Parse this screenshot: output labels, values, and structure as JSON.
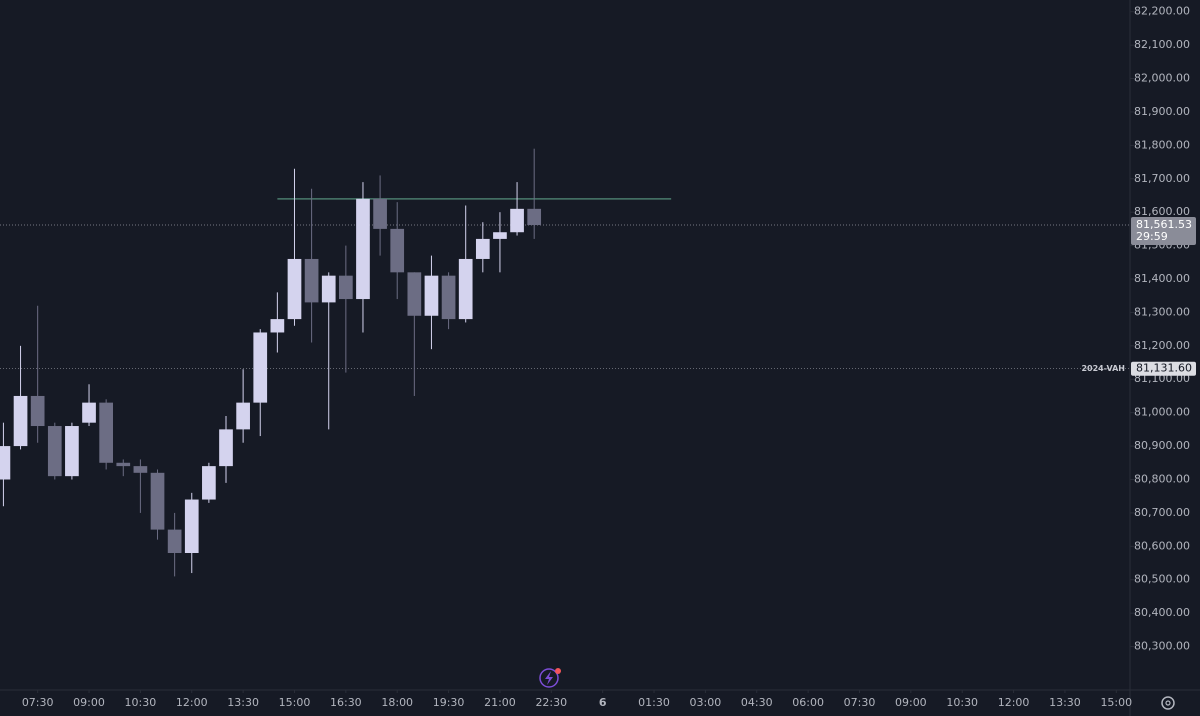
{
  "chart_data": {
    "type": "candlestick",
    "x": [
      6.5,
      7,
      7.5,
      8,
      8.5,
      9,
      9.5,
      10,
      10.5,
      11,
      11.5,
      12,
      12.5,
      13,
      13.5,
      14,
      14.5,
      15,
      15.5,
      16,
      16.5,
      17,
      17.5,
      18,
      18.5,
      19,
      19.5,
      20,
      20.5,
      21,
      21.5,
      22
    ],
    "open": [
      80800,
      80900,
      81050,
      80960,
      80810,
      80970,
      81030,
      80850,
      80840,
      80820,
      80650,
      80580,
      80740,
      80840,
      80950,
      81030,
      81240,
      81280,
      81460,
      81330,
      81410,
      81340,
      81640,
      81550,
      81420,
      81290,
      81410,
      81280,
      81460,
      81520,
      81540,
      81610
    ],
    "high": [
      80970,
      81200,
      81320,
      80970,
      80970,
      81085,
      81040,
      80860,
      80860,
      80830,
      80700,
      80760,
      80850,
      80990,
      81130,
      81250,
      81360,
      81730,
      81670,
      81420,
      81500,
      81690,
      81710,
      81630,
      81420,
      81470,
      81420,
      81620,
      81570,
      81600,
      81690,
      81790
    ],
    "low": [
      80720,
      80890,
      80910,
      80800,
      80800,
      80960,
      80830,
      80810,
      80700,
      80620,
      80510,
      80520,
      80730,
      80790,
      80910,
      80930,
      81180,
      81260,
      81210,
      80950,
      81120,
      81240,
      81470,
      81340,
      81050,
      81190,
      81250,
      81270,
      81420,
      81420,
      81530,
      81520
    ],
    "close": [
      80900,
      81050,
      80960,
      80810,
      80960,
      81030,
      80850,
      80840,
      80820,
      80650,
      80580,
      80740,
      80840,
      80950,
      81030,
      81240,
      81280,
      81460,
      81330,
      81410,
      81340,
      81640,
      81550,
      81420,
      81290,
      81410,
      81280,
      81460,
      81520,
      81540,
      81610,
      81561.53
    ],
    "up_color": "#d4d3ee",
    "down_color": "#6c6d84",
    "xlim": [
      6.4,
      39.4
    ],
    "xticks": [
      {
        "value": 7.5,
        "label": "07:30"
      },
      {
        "value": 9,
        "label": "09:00"
      },
      {
        "value": 10.5,
        "label": "10:30"
      },
      {
        "value": 12,
        "label": "12:00"
      },
      {
        "value": 13.5,
        "label": "13:30"
      },
      {
        "value": 15,
        "label": "15:00"
      },
      {
        "value": 16.5,
        "label": "16:30"
      },
      {
        "value": 18,
        "label": "18:00"
      },
      {
        "value": 19.5,
        "label": "19:30"
      },
      {
        "value": 21,
        "label": "21:00"
      },
      {
        "value": 22.5,
        "label": "22:30"
      },
      {
        "value": 24,
        "label": "6"
      },
      {
        "value": 25.5,
        "label": "01:30"
      },
      {
        "value": 27,
        "label": "03:00"
      },
      {
        "value": 28.5,
        "label": "04:30"
      },
      {
        "value": 30,
        "label": "06:00"
      },
      {
        "value": 31.5,
        "label": "07:30"
      },
      {
        "value": 33,
        "label": "09:00"
      },
      {
        "value": 34.5,
        "label": "10:30"
      },
      {
        "value": 36,
        "label": "12:00"
      },
      {
        "value": 37.5,
        "label": "13:30"
      },
      {
        "value": 39,
        "label": "15:00"
      }
    ],
    "ylim": [
      80170,
      82235
    ],
    "yticks": [
      {
        "value": 80300,
        "label": "80,300.00"
      },
      {
        "value": 80400,
        "label": "80,400.00"
      },
      {
        "value": 80500,
        "label": "80,500.00"
      },
      {
        "value": 80600,
        "label": "80,600.00"
      },
      {
        "value": 80700,
        "label": "80,700.00"
      },
      {
        "value": 80800,
        "label": "80,800.00"
      },
      {
        "value": 80900,
        "label": "80,900.00"
      },
      {
        "value": 81000,
        "label": "81,000.00"
      },
      {
        "value": 81100,
        "label": "81,100.00"
      },
      {
        "value": 81200,
        "label": "81,200.00"
      },
      {
        "value": 81300,
        "label": "81,300.00"
      },
      {
        "value": 81400,
        "label": "81,400.00"
      },
      {
        "value": 81500,
        "label": "81,500.00"
      },
      {
        "value": 81600,
        "label": "81,600.00"
      },
      {
        "value": 81700,
        "label": "81,700.00"
      },
      {
        "value": 81800,
        "label": "81,800.00"
      },
      {
        "value": 81900,
        "label": "81,900.00"
      },
      {
        "value": 82000,
        "label": "82,000.00"
      },
      {
        "value": 82100,
        "label": "82,100.00"
      },
      {
        "value": 82200,
        "label": "82,200.00"
      }
    ],
    "last_price": {
      "value": 81561.53,
      "label": "81,561.53",
      "countdown": "29:59"
    },
    "levels": [
      {
        "name": "2024-VAH",
        "value": 81131.6,
        "label": "81,131.60"
      }
    ],
    "trend_line": {
      "value": 81640,
      "x": [
        14.5,
        26
      ],
      "color": "#4a7a6c"
    }
  }
}
